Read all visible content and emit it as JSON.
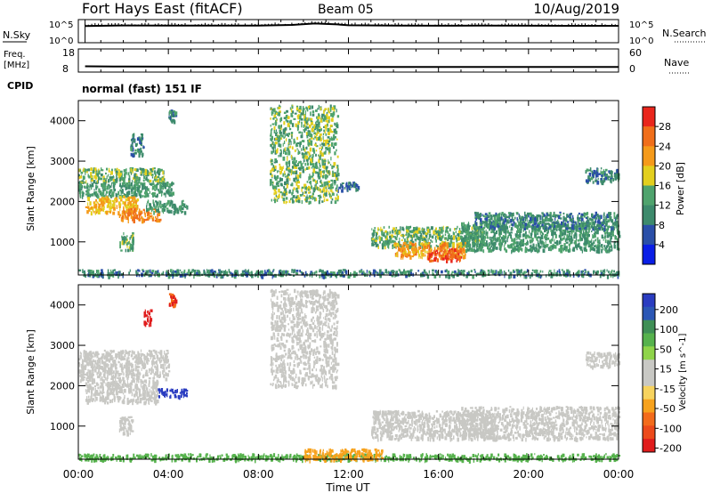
{
  "header": {
    "title": "Fort Hays East (fitACF)",
    "beam": "Beam 05",
    "date": "10/Aug/2019"
  },
  "noise_panel": {
    "left_label": "N.Sky",
    "right_label": "N.Search",
    "ticks": [
      "10^5",
      "10^0"
    ]
  },
  "freq_panel": {
    "left_label_line1": "Freq.",
    "left_label_line2": "[MHz]",
    "left_ticks": [
      "18",
      "8"
    ],
    "right_label": "Nave",
    "right_ticks": [
      "60",
      "0"
    ],
    "cpid_label": "CPID",
    "cpid_text": "normal (fast) 151 IF"
  },
  "colors": {
    "power_scale": [
      "#0a1ee6",
      "#2a4fa8",
      "#3d8a6c",
      "#4fa36d",
      "#e3cf1e",
      "#f59a1a",
      "#f06e1a",
      "#e9261c"
    ],
    "velocity_scale": [
      "#2a3cc0",
      "#2b57b5",
      "#3f8f56",
      "#56b24d",
      "#8fd44a",
      "#c8c8c4",
      "#c8c8c4",
      "#f7d35e",
      "#f7a21d",
      "#f36b1b",
      "#ec4a1b",
      "#e01c1c"
    ]
  },
  "chart_data": [
    {
      "type": "line",
      "panel": "noise",
      "ylabel": "N.Sky",
      "y2label": "N.Search",
      "yscale": "log",
      "ylim": [
        1,
        100000
      ],
      "xlim": [
        0,
        24
      ],
      "x_ticks": [
        "00:00",
        "04:00",
        "08:00",
        "12:00",
        "16:00",
        "20:00",
        "00:00"
      ],
      "series": [
        {
          "name": "N.Sky",
          "x": [
            0.3,
            2,
            4,
            6,
            8,
            9.5,
            10.5,
            11.5,
            12,
            14,
            16,
            18,
            20,
            22,
            24
          ],
          "y": [
            4000,
            5500,
            5000,
            5000,
            5200,
            7000,
            14000,
            9000,
            6000,
            5000,
            4800,
            4900,
            4700,
            4500,
            4500
          ]
        }
      ]
    },
    {
      "type": "line",
      "panel": "frequency",
      "ylabel": "Freq. [MHz]",
      "y2label": "Nave",
      "ylim": [
        8,
        18
      ],
      "y2lim": [
        0,
        60
      ],
      "xlim": [
        0,
        24
      ],
      "series": [
        {
          "name": "Freq.",
          "x": [
            0.3,
            2,
            6,
            10,
            14,
            18,
            22,
            24
          ],
          "y": [
            10.5,
            10.4,
            10.3,
            10.3,
            10.2,
            10.2,
            10.2,
            10.2
          ]
        }
      ]
    },
    {
      "type": "heatmap",
      "panel": "power",
      "ylabel": "Slant Range [km]",
      "xlim": [
        0,
        24
      ],
      "ylim": [
        180,
        4500
      ],
      "y_ticks": [
        1000,
        2000,
        3000,
        4000
      ],
      "colorbar": {
        "label": "Power [dB]",
        "ticks": [
          4,
          8,
          12,
          16,
          20,
          24,
          28
        ],
        "range": [
          0,
          32
        ]
      },
      "regions": [
        {
          "t0": 0.0,
          "t1": 3.8,
          "r0": 2500,
          "r1": 2850,
          "value": 14
        },
        {
          "t0": 0.0,
          "t1": 4.2,
          "r0": 2150,
          "r1": 2500,
          "value": 12
        },
        {
          "t0": 0.3,
          "t1": 2.6,
          "r0": 1750,
          "r1": 2150,
          "value": 20
        },
        {
          "t0": 1.8,
          "t1": 3.6,
          "r0": 1550,
          "r1": 1850,
          "value": 24
        },
        {
          "t0": 3.0,
          "t1": 4.8,
          "r0": 1750,
          "r1": 2050,
          "value": 12
        },
        {
          "t0": 1.8,
          "t1": 2.4,
          "r0": 800,
          "r1": 1250,
          "value": 14
        },
        {
          "t0": 2.3,
          "t1": 2.9,
          "r0": 3150,
          "r1": 3700,
          "value": 10
        },
        {
          "t0": 4.0,
          "t1": 4.3,
          "r0": 4000,
          "r1": 4300,
          "value": 10
        },
        {
          "t0": 0.0,
          "t1": 24.0,
          "r0": 180,
          "r1": 330,
          "value": 10
        },
        {
          "t0": 13.0,
          "t1": 18.0,
          "r0": 900,
          "r1": 1400,
          "value": 14
        },
        {
          "t0": 14.0,
          "t1": 17.2,
          "r0": 650,
          "r1": 1000,
          "value": 22
        },
        {
          "t0": 15.5,
          "t1": 17.0,
          "r0": 550,
          "r1": 850,
          "value": 28
        },
        {
          "t0": 17.0,
          "t1": 24.0,
          "r0": 800,
          "r1": 1500,
          "value": 12
        },
        {
          "t0": 17.5,
          "t1": 24.0,
          "r0": 1350,
          "r1": 1750,
          "value": 10
        },
        {
          "t0": 22.5,
          "t1": 24.0,
          "r0": 2500,
          "r1": 2850,
          "value": 10
        },
        {
          "t0": 11.5,
          "t1": 12.5,
          "r0": 2300,
          "r1": 2500,
          "value": 8
        },
        {
          "t0": 8.5,
          "t1": 11.5,
          "r0": 2000,
          "r1": 4400,
          "value": 14
        }
      ]
    },
    {
      "type": "heatmap",
      "panel": "velocity",
      "ylabel": "Slant Range [km]",
      "xlabel": "Time UT",
      "xlim": [
        0,
        24
      ],
      "ylim": [
        180,
        4500
      ],
      "y_ticks": [
        1000,
        2000,
        3000,
        4000
      ],
      "colorbar": {
        "label": "Velocity [m s^-1]",
        "ticks": [
          200,
          100,
          50,
          15,
          -15,
          -50,
          -100,
          -200
        ],
        "range": [
          -250,
          250
        ]
      },
      "regions": [
        {
          "t0": 0.0,
          "t1": 4.0,
          "r0": 2150,
          "r1": 2900,
          "value": 0
        },
        {
          "t0": 0.3,
          "t1": 3.5,
          "r0": 1600,
          "r1": 2150,
          "value": 5
        },
        {
          "t0": 3.5,
          "t1": 4.8,
          "r0": 1750,
          "r1": 1950,
          "value": 210
        },
        {
          "t0": 1.8,
          "t1": 2.4,
          "r0": 800,
          "r1": 1250,
          "value": 0
        },
        {
          "t0": 2.9,
          "t1": 3.2,
          "r0": 3500,
          "r1": 3900,
          "value": -220
        },
        {
          "t0": 4.0,
          "t1": 4.3,
          "r0": 4000,
          "r1": 4300,
          "value": -200
        },
        {
          "t0": 0.0,
          "t1": 24.0,
          "r0": 180,
          "r1": 330,
          "value": 40
        },
        {
          "t0": 10.0,
          "t1": 13.5,
          "r0": 180,
          "r1": 450,
          "value": -60
        },
        {
          "t0": 13.0,
          "t1": 18.5,
          "r0": 700,
          "r1": 1400,
          "value": 0
        },
        {
          "t0": 17.0,
          "t1": 24.0,
          "r0": 700,
          "r1": 1500,
          "value": 0
        },
        {
          "t0": 22.5,
          "t1": 24.0,
          "r0": 2500,
          "r1": 2850,
          "value": 0
        },
        {
          "t0": 8.5,
          "t1": 11.5,
          "r0": 2000,
          "r1": 4400,
          "value": 0
        }
      ]
    }
  ]
}
